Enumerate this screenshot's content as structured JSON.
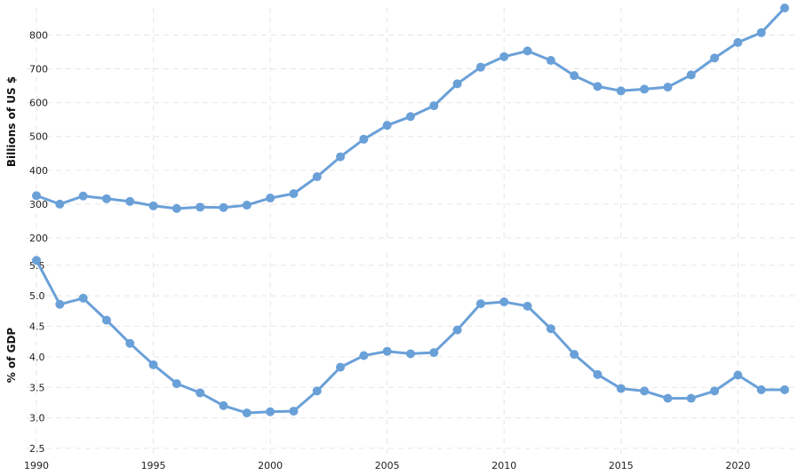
{
  "chart_data": [
    {
      "type": "line",
      "ylabel": "Billions of US $",
      "ylim": [
        200,
        880
      ],
      "yticks": [
        200,
        300,
        400,
        500,
        600,
        700,
        800
      ],
      "grid": true,
      "color": "#6aa0d8",
      "x": [
        1990,
        1991,
        1992,
        1993,
        1994,
        1995,
        1996,
        1997,
        1998,
        1999,
        2000,
        2001,
        2002,
        2003,
        2004,
        2005,
        2006,
        2007,
        2008,
        2009,
        2010,
        2011,
        2012,
        2013,
        2014,
        2015,
        2016,
        2017,
        2018,
        2019,
        2020,
        2021,
        2022
      ],
      "values": [
        325,
        300,
        324,
        316,
        308,
        295,
        287,
        291,
        290,
        297,
        318,
        331,
        381,
        440,
        492,
        533,
        559,
        591,
        656,
        705,
        736,
        753,
        725,
        680,
        648,
        635,
        640,
        646,
        682,
        732,
        778,
        807,
        880
      ]
    },
    {
      "type": "line",
      "ylabel": "% of GDP",
      "ylim": [
        2.5,
        5.7
      ],
      "yticks": [
        2.5,
        3.0,
        3.5,
        4.0,
        4.5,
        5.0,
        5.5
      ],
      "grid": true,
      "color": "#6aa0d8",
      "x": [
        1990,
        1991,
        1992,
        1993,
        1994,
        1995,
        1996,
        1997,
        1998,
        1999,
        2000,
        2001,
        2002,
        2003,
        2004,
        2005,
        2006,
        2007,
        2008,
        2009,
        2010,
        2011,
        2012,
        2013,
        2014,
        2015,
        2016,
        2017,
        2018,
        2019,
        2020,
        2021,
        2022
      ],
      "values": [
        5.58,
        4.86,
        4.96,
        4.6,
        4.22,
        3.87,
        3.56,
        3.41,
        3.2,
        3.08,
        3.1,
        3.11,
        3.44,
        3.83,
        4.02,
        4.09,
        4.05,
        4.07,
        4.44,
        4.87,
        4.9,
        4.83,
        4.46,
        4.04,
        3.71,
        3.48,
        3.44,
        3.32,
        3.32,
        3.44,
        3.7,
        3.46,
        3.46
      ]
    }
  ],
  "xaxis": {
    "tick_values": [
      1990,
      1995,
      2000,
      2005,
      2010,
      2015,
      2020
    ],
    "tick_labels": [
      "1990",
      "1995",
      "2000",
      "2005",
      "2010",
      "2015",
      "2020"
    ]
  }
}
